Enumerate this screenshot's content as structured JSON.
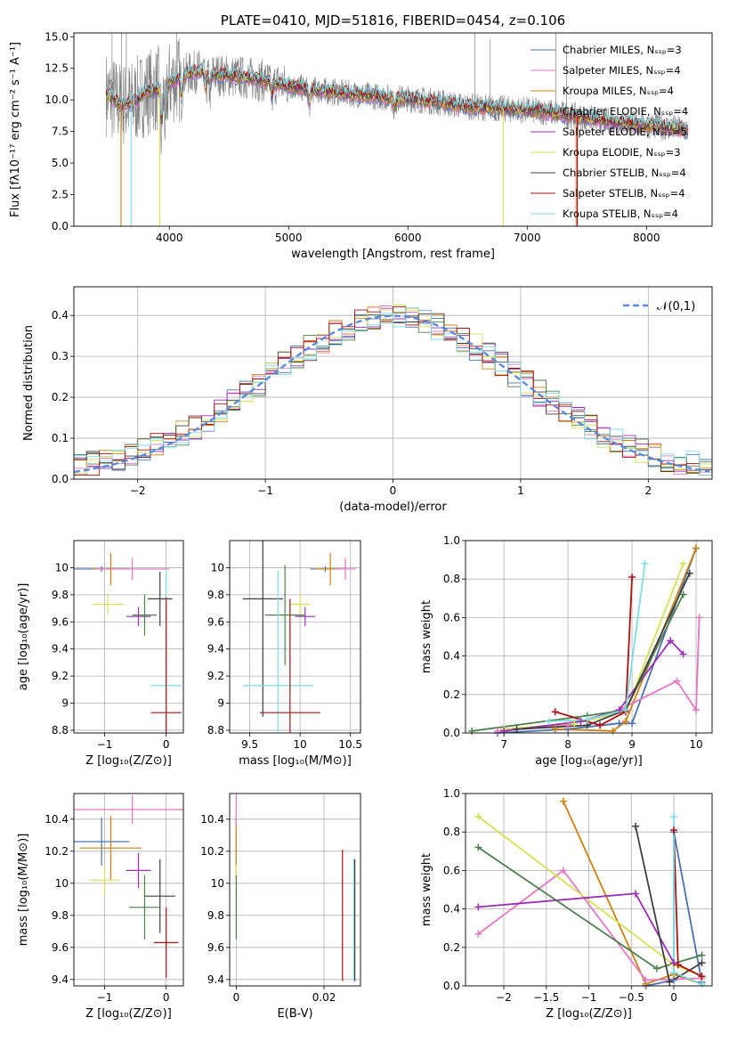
{
  "chart_data": [
    {
      "id": "spectrum",
      "type": "line",
      "title": "PLATE=0410, MJD=51816, FIBERID=0454, z=0.106",
      "xlabel": "wavelength [Angstrom, rest frame]",
      "ylabel": "Flux [fλ10⁻¹⁷ erg cm⁻² s⁻¹ A⁻¹]",
      "xlim": [
        3200,
        8550
      ],
      "ylim": [
        0,
        15.3
      ],
      "xticks": [
        4000,
        5000,
        6000,
        7000,
        8000
      ],
      "yticks": [
        0.0,
        2.5,
        5.0,
        7.5,
        10.0,
        12.5,
        15.0
      ],
      "grid": false,
      "legend_position": "top-right",
      "observed_color": "#808080",
      "continuum": {
        "x": [
          3470,
          3600,
          3700,
          3800,
          3950,
          4100,
          4250,
          4400,
          4600,
          4800,
          5000,
          5200,
          5400,
          5600,
          5800,
          6000,
          6200,
          6400,
          6600,
          6800,
          7000,
          7200,
          7400,
          7600,
          7800,
          8000,
          8200,
          8350
        ],
        "y": [
          10.5,
          9.6,
          9.8,
          10.6,
          11.0,
          11.9,
          12.3,
          12.0,
          11.8,
          11.5,
          11.1,
          10.8,
          10.6,
          10.4,
          10.2,
          10.1,
          9.9,
          9.6,
          9.4,
          9.3,
          9.2,
          9.0,
          8.7,
          8.4,
          8.2,
          8.0,
          7.8,
          7.6
        ]
      },
      "series": [
        {
          "name": "Chabrier MILES, Nₛₛₚ=3",
          "color": "#4c72b0"
        },
        {
          "name": "Salpeter MILES, Nₛₛₚ=4",
          "color": "#e377c2"
        },
        {
          "name": "Kroupa MILES, Nₛₛₚ=4",
          "color": "#c98310"
        },
        {
          "name": "Chabrier ELODIE, Nₛₛₚ=4",
          "color": "#4f7f4f"
        },
        {
          "name": "Salpeter ELODIE, Nₛₛₚ=5",
          "color": "#9b30b5"
        },
        {
          "name": "Kroupa ELODIE, Nₛₛₚ=3",
          "color": "#d4e157"
        },
        {
          "name": "Chabrier STELIB, Nₛₛₚ=4",
          "color": "#404040"
        },
        {
          "name": "Salpeter STELIB, Nₛₛₚ=4",
          "color": "#aa1010"
        },
        {
          "name": "Kroupa STELIB, Nₛₛₚ=4",
          "color": "#7fdde6"
        }
      ]
    },
    {
      "id": "residuals",
      "type": "histogram",
      "xlabel": "(data-model)/error",
      "ylabel": "Normed distribution",
      "xlim": [
        -2.5,
        2.5
      ],
      "ylim": [
        0,
        0.47
      ],
      "xticks": [
        -2,
        -1,
        0,
        1,
        2
      ],
      "yticks": [
        0.0,
        0.1,
        0.2,
        0.3,
        0.4
      ],
      "grid": true,
      "bin_width": 0.1,
      "legend_position": "top-right",
      "reference_curve": {
        "name": "𝒩(0,1)",
        "color": "#5b8bd6",
        "mu": 0,
        "sigma": 1
      }
    },
    {
      "id": "age-vs-Z",
      "type": "scatter",
      "xlabel": "Z [log₁₀(Z/Z⊙)]",
      "ylabel": "age  [log₁₀(age/yr)]",
      "xlim": [
        -1.5,
        0.28
      ],
      "ylim": [
        8.78,
        10.2
      ],
      "xticks": [
        -1,
        0
      ],
      "yticks": [
        8.8,
        9.0,
        9.2,
        9.4,
        9.6,
        9.8,
        10.0
      ],
      "grid": true,
      "points": [
        {
          "x": -1.05,
          "y": 9.99,
          "xerr": 0.45,
          "yerr": 0.02,
          "color": "#4c72b0"
        },
        {
          "x": -0.9,
          "y": 9.99,
          "xerr": 0.3,
          "yerr": 0.12,
          "color": "#c98310"
        },
        {
          "x": -0.55,
          "y": 9.99,
          "xerr": 0.6,
          "yerr": 0.08,
          "color": "#e377c2"
        },
        {
          "x": -0.95,
          "y": 9.73,
          "xerr": 0.25,
          "yerr": 0.08,
          "color": "#d4e157"
        },
        {
          "x": -0.45,
          "y": 9.64,
          "xerr": 0.2,
          "yerr": 0.07,
          "color": "#9b30b5"
        },
        {
          "x": -0.35,
          "y": 9.65,
          "xerr": 0.2,
          "yerr": 0.15,
          "color": "#4f7f4f"
        },
        {
          "x": -0.1,
          "y": 9.77,
          "xerr": 0.2,
          "yerr": 0.2,
          "color": "#404040"
        },
        {
          "x": 0.0,
          "y": 9.13,
          "xerr": 0.25,
          "yerr": 0.85,
          "color": "#7fdde6"
        },
        {
          "x": 0.0,
          "y": 8.93,
          "xerr": 0.25,
          "yerr": 0.85,
          "color": "#aa1010"
        }
      ]
    },
    {
      "id": "age-vs-mass",
      "type": "scatter",
      "xlabel": "mass [log₁₀(M/M⊙)]",
      "ylabel": "",
      "xlim": [
        9.3,
        10.6
      ],
      "ylim": [
        8.78,
        10.2
      ],
      "xticks": [
        9.5,
        10.0,
        10.5
      ],
      "yticks": [
        8.8,
        9.0,
        9.2,
        9.4,
        9.6,
        9.8,
        10.0
      ],
      "grid": true,
      "points": [
        {
          "x": 10.25,
          "y": 9.99,
          "xerr": 0.15,
          "yerr": 0.02,
          "color": "#4c72b0"
        },
        {
          "x": 10.3,
          "y": 9.99,
          "xerr": 0.15,
          "yerr": 0.12,
          "color": "#c98310"
        },
        {
          "x": 10.45,
          "y": 9.99,
          "xerr": 0.1,
          "yerr": 0.08,
          "color": "#e377c2"
        },
        {
          "x": 10.0,
          "y": 9.73,
          "xerr": 0.1,
          "yerr": 0.08,
          "color": "#d4e157"
        },
        {
          "x": 10.05,
          "y": 9.64,
          "xerr": 0.1,
          "yerr": 0.07,
          "color": "#9b30b5"
        },
        {
          "x": 9.85,
          "y": 9.65,
          "xerr": 0.2,
          "yerr": 0.37,
          "color": "#4f7f4f"
        },
        {
          "x": 9.63,
          "y": 9.77,
          "xerr": 0.2,
          "yerr": 0.87,
          "color": "#404040"
        },
        {
          "x": 9.78,
          "y": 9.13,
          "xerr": 0.35,
          "yerr": 0.85,
          "color": "#7fdde6"
        },
        {
          "x": 9.9,
          "y": 8.93,
          "xerr": 0.3,
          "yerr": 0.84,
          "color": "#aa1010"
        }
      ]
    },
    {
      "id": "weight-vs-age",
      "type": "line",
      "xlabel": "age  [log₁₀(age/yr)]",
      "ylabel": "mass weight",
      "xlim": [
        6.4,
        10.25
      ],
      "ylim": [
        0,
        1.0
      ],
      "xticks": [
        7,
        8,
        9,
        10
      ],
      "yticks": [
        0.0,
        0.2,
        0.4,
        0.6,
        0.8,
        1.0
      ],
      "grid": true,
      "series": [
        {
          "color": "#4c72b0",
          "x": [
            6.9,
            8.0,
            8.8,
            9.0,
            10.0
          ],
          "y": [
            0.0,
            0.02,
            0.05,
            0.05,
            0.96
          ]
        },
        {
          "color": "#c98310",
          "x": [
            7.8,
            8.7,
            8.9,
            10.0
          ],
          "y": [
            0.02,
            0.01,
            0.06,
            0.96
          ]
        },
        {
          "color": "#e377c2",
          "x": [
            6.9,
            8.0,
            8.8,
            9.7,
            10.0,
            10.05
          ],
          "y": [
            0.01,
            0.04,
            0.12,
            0.27,
            0.12,
            0.6
          ]
        },
        {
          "color": "#d4e157",
          "x": [
            7.0,
            8.1,
            8.9,
            9.8
          ],
          "y": [
            0.02,
            0.05,
            0.11,
            0.88
          ]
        },
        {
          "color": "#9b30b5",
          "x": [
            7.0,
            8.2,
            8.8,
            9.6,
            9.8
          ],
          "y": [
            0.01,
            0.06,
            0.12,
            0.48,
            0.41
          ]
        },
        {
          "color": "#4f7f4f",
          "x": [
            6.5,
            8.3,
            8.9,
            9.8
          ],
          "y": [
            0.01,
            0.09,
            0.12,
            0.72
          ]
        },
        {
          "color": "#404040",
          "x": [
            7.2,
            8.3,
            8.9,
            9.9
          ],
          "y": [
            0.02,
            0.04,
            0.12,
            0.83
          ]
        },
        {
          "color": "#aa1010",
          "x": [
            7.8,
            8.5,
            8.9,
            9.0
          ],
          "y": [
            0.11,
            0.04,
            0.11,
            0.81
          ]
        },
        {
          "color": "#7fdde6",
          "x": [
            7.7,
            8.3,
            8.9,
            9.2
          ],
          "y": [
            0.06,
            0.07,
            0.12,
            0.88
          ]
        }
      ]
    },
    {
      "id": "mass-vs-Z",
      "type": "scatter",
      "xlabel": "Z [log₁₀(Z/Z⊙)]",
      "ylabel": "mass [log₁₀(M/M⊙)]",
      "xlim": [
        -1.5,
        0.28
      ],
      "ylim": [
        9.36,
        10.56
      ],
      "xticks": [
        -1,
        0
      ],
      "yticks": [
        9.4,
        9.6,
        9.8,
        10.0,
        10.2,
        10.4
      ],
      "grid": true,
      "points": [
        {
          "x": -1.05,
          "y": 10.26,
          "xerr": 0.45,
          "yerr": 0.15,
          "color": "#4c72b0"
        },
        {
          "x": -0.9,
          "y": 10.22,
          "xerr": 0.5,
          "yerr": 0.2,
          "color": "#c98310"
        },
        {
          "x": -0.55,
          "y": 10.46,
          "xerr": 0.95,
          "yerr": 0.09,
          "color": "#e377c2"
        },
        {
          "x": -1.0,
          "y": 10.02,
          "xerr": 0.25,
          "yerr": 0.09,
          "color": "#d4e157"
        },
        {
          "x": -0.45,
          "y": 10.08,
          "xerr": 0.2,
          "yerr": 0.11,
          "color": "#9b30b5"
        },
        {
          "x": -0.35,
          "y": 9.85,
          "xerr": 0.25,
          "yerr": 0.2,
          "color": "#4f7f4f"
        },
        {
          "x": -0.1,
          "y": 9.92,
          "xerr": 0.25,
          "yerr": 0.23,
          "color": "#404040"
        },
        {
          "x": 0.0,
          "y": 9.63,
          "xerr": 0.2,
          "yerr": 0.22,
          "color": "#aa1010"
        }
      ]
    },
    {
      "id": "mass-vs-EBV",
      "type": "scatter",
      "xlabel": "E(B-V)",
      "ylabel": "",
      "xlim": [
        -0.0015,
        0.0283
      ],
      "ylim": [
        9.36,
        10.56
      ],
      "xticks": [
        0.0,
        0.02
      ],
      "yticks": [
        9.4,
        9.6,
        9.8,
        10.0,
        10.2,
        10.4
      ],
      "grid": true,
      "points": [
        {
          "x": 0.0,
          "y": 10.26,
          "xerr": 0,
          "yerr": 0.16,
          "color": "#4c72b0"
        },
        {
          "x": 0.0,
          "y": 10.22,
          "xerr": 0,
          "yerr": 0.2,
          "color": "#c98310"
        },
        {
          "x": 0.0,
          "y": 10.46,
          "xerr": 0,
          "yerr": 0.1,
          "color": "#e377c2"
        },
        {
          "x": 0.0,
          "y": 10.02,
          "xerr": 0,
          "yerr": 0.1,
          "color": "#d4e157"
        },
        {
          "x": 0.0,
          "y": 9.85,
          "xerr": 0,
          "yerr": 0.2,
          "color": "#4f7f4f"
        },
        {
          "x": 0.0242,
          "y": 9.8,
          "xerr": 0,
          "yerr": 0.41,
          "color": "#aa1010"
        },
        {
          "x": 0.0268,
          "y": 9.77,
          "xerr": 0,
          "yerr": 0.38,
          "color": "#7fdde6"
        },
        {
          "x": 0.027,
          "y": 9.77,
          "xerr": 0,
          "yerr": 0.38,
          "color": "#404040"
        }
      ]
    },
    {
      "id": "weight-vs-Z",
      "type": "line",
      "xlabel": "Z [log₁₀(Z/Z⊙)]",
      "ylabel": "mass weight",
      "xlim": [
        -2.45,
        0.45
      ],
      "ylim": [
        0,
        1.0
      ],
      "xticks": [
        -2.0,
        -1.5,
        -1.0,
        -0.5,
        0.0
      ],
      "yticks": [
        0.0,
        0.2,
        0.4,
        0.6,
        0.8,
        1.0
      ],
      "grid": true,
      "series": [
        {
          "color": "#4c72b0",
          "x": [
            -0.33,
            0.0,
            0.0,
            0.33
          ],
          "y": [
            0.0,
            0.03,
            0.8,
            0.02
          ]
        },
        {
          "color": "#c98310",
          "x": [
            -1.3,
            -0.33,
            0.0,
            0.33
          ],
          "y": [
            0.96,
            0.01,
            0.06,
            0.01
          ]
        },
        {
          "color": "#e377c2",
          "x": [
            -2.3,
            -1.3,
            -0.33,
            0.33
          ],
          "y": [
            0.27,
            0.6,
            0.03,
            0.04
          ]
        },
        {
          "color": "#d4e157",
          "x": [
            -2.3,
            0.0,
            0.33
          ],
          "y": [
            0.88,
            0.11,
            0.05
          ]
        },
        {
          "color": "#9b30b5",
          "x": [
            -2.3,
            -0.45,
            0.0
          ],
          "y": [
            0.41,
            0.48,
            0.12
          ]
        },
        {
          "color": "#4f7f4f",
          "x": [
            -2.3,
            -0.2,
            0.33
          ],
          "y": [
            0.72,
            0.09,
            0.16
          ]
        },
        {
          "color": "#404040",
          "x": [
            -0.45,
            -0.05,
            0.33
          ],
          "y": [
            0.83,
            0.02,
            0.12
          ]
        },
        {
          "color": "#aa1010",
          "x": [
            0.0,
            0.05,
            0.33
          ],
          "y": [
            0.81,
            0.11,
            0.05
          ]
        },
        {
          "color": "#7fdde6",
          "x": [
            0.0,
            0.0,
            0.33
          ],
          "y": [
            0.88,
            0.07,
            0.01
          ]
        }
      ]
    }
  ]
}
